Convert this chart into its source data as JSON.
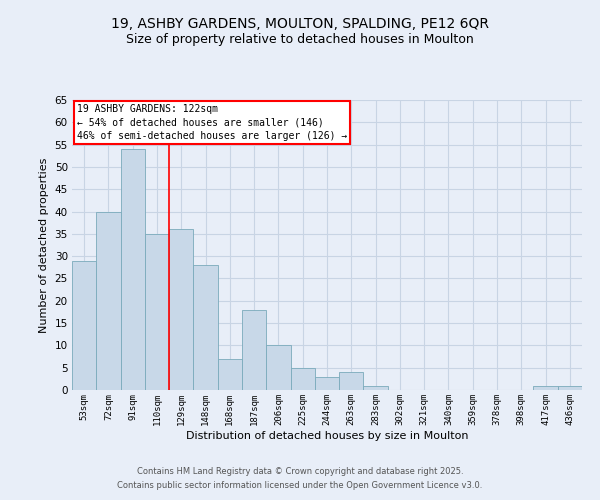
{
  "title_line1": "19, ASHBY GARDENS, MOULTON, SPALDING, PE12 6QR",
  "title_line2": "Size of property relative to detached houses in Moulton",
  "xlabel": "Distribution of detached houses by size in Moulton",
  "ylabel": "Number of detached properties",
  "bin_labels": [
    "53sqm",
    "72sqm",
    "91sqm",
    "110sqm",
    "129sqm",
    "148sqm",
    "168sqm",
    "187sqm",
    "206sqm",
    "225sqm",
    "244sqm",
    "263sqm",
    "283sqm",
    "302sqm",
    "321sqm",
    "340sqm",
    "359sqm",
    "378sqm",
    "398sqm",
    "417sqm",
    "436sqm"
  ],
  "bar_heights": [
    29,
    40,
    54,
    35,
    36,
    28,
    7,
    18,
    10,
    5,
    3,
    4,
    1,
    0,
    0,
    0,
    0,
    0,
    0,
    1,
    1
  ],
  "bar_color": "#c8d8e8",
  "bar_edge_color": "#7aaabb",
  "red_line_x": 3.5,
  "annotation_text": "19 ASHBY GARDENS: 122sqm\n← 54% of detached houses are smaller (146)\n46% of semi-detached houses are larger (126) →",
  "annotation_box_color": "white",
  "annotation_box_edge": "red",
  "ylim": [
    0,
    65
  ],
  "yticks": [
    0,
    5,
    10,
    15,
    20,
    25,
    30,
    35,
    40,
    45,
    50,
    55,
    60,
    65
  ],
  "grid_color": "#c8d4e4",
  "background_color": "#e8eef8",
  "footer_line1": "Contains HM Land Registry data © Crown copyright and database right 2025.",
  "footer_line2": "Contains public sector information licensed under the Open Government Licence v3.0."
}
